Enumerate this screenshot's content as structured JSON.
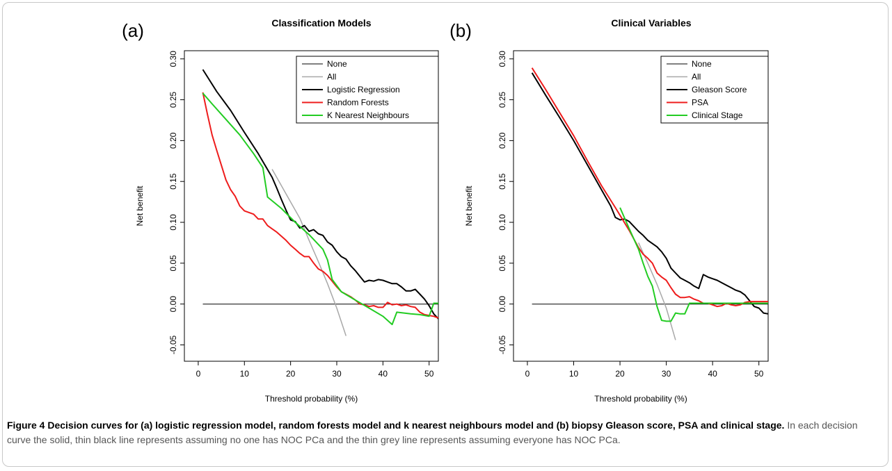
{
  "caption": {
    "bold": "Figure 4 Decision curves for (a) logistic regression model, random forests model and k nearest neighbours model and (b) biopsy Gleason score, PSA and clinical stage.",
    "text": " In each decision curve the solid, thin black line represents assuming no one has NOC PCa and the thin grey line represents assuming everyone has NOC PCa."
  },
  "chart_data": [
    {
      "type": "line",
      "panel_label": "(a)",
      "title": "Classification Models",
      "xlabel": "Threshold probability (%)",
      "ylabel": "Net benefit",
      "xlim": [
        -3,
        52
      ],
      "ylim": [
        -0.07,
        0.31
      ],
      "xticks": [
        "0",
        "10",
        "20",
        "30",
        "40",
        "50"
      ],
      "yticks": [
        "-0.05",
        "0.00",
        "0.05",
        "0.10",
        "0.15",
        "0.20",
        "0.25",
        "0.30"
      ],
      "legend_position": "top-right",
      "series": [
        {
          "name": "None",
          "color": "#000000",
          "width": 1,
          "x": [
            1,
            52
          ],
          "y": [
            0,
            0
          ]
        },
        {
          "name": "All",
          "color": "#a8a8a8",
          "width": 1.5,
          "x": [
            16,
            20,
            22,
            24,
            26,
            28,
            30,
            32
          ],
          "y": [
            0.165,
            0.125,
            0.105,
            0.078,
            0.052,
            0.025,
            -0.005,
            -0.039
          ]
        },
        {
          "name": "Logistic Regression",
          "color": "#000000",
          "width": 2,
          "x": [
            1,
            4,
            7,
            10,
            13,
            16,
            17,
            18,
            19,
            20,
            21,
            22,
            23,
            24,
            25,
            26,
            27,
            28,
            29,
            30,
            31,
            32,
            33,
            34,
            35,
            36,
            37,
            38,
            39,
            40,
            41,
            42,
            43,
            44,
            45,
            46,
            47,
            48,
            49,
            50,
            51,
            52
          ],
          "y": [
            0.287,
            0.26,
            0.237,
            0.21,
            0.184,
            0.155,
            0.142,
            0.128,
            0.115,
            0.103,
            0.101,
            0.093,
            0.096,
            0.089,
            0.091,
            0.086,
            0.084,
            0.076,
            0.072,
            0.064,
            0.058,
            0.055,
            0.047,
            0.041,
            0.034,
            0.027,
            0.029,
            0.028,
            0.03,
            0.029,
            0.027,
            0.025,
            0.025,
            0.021,
            0.016,
            0.016,
            0.018,
            0.012,
            0.006,
            -0.002,
            -0.012,
            -0.018
          ]
        },
        {
          "name": "Random Forests",
          "color": "#ee1c1c",
          "width": 2,
          "x": [
            1,
            2,
            3,
            4,
            5,
            6,
            7,
            8,
            9,
            10,
            11,
            12,
            13,
            14,
            15,
            16,
            17,
            18,
            19,
            20,
            21,
            22,
            23,
            24,
            25,
            26,
            27,
            28,
            29,
            30,
            31,
            32,
            33,
            34,
            35,
            36,
            37,
            38,
            39,
            40,
            41,
            42,
            43,
            44,
            45,
            46,
            47,
            48,
            49,
            50,
            51,
            52
          ],
          "y": [
            0.259,
            0.232,
            0.207,
            0.188,
            0.17,
            0.152,
            0.14,
            0.132,
            0.12,
            0.114,
            0.112,
            0.11,
            0.104,
            0.104,
            0.096,
            0.092,
            0.088,
            0.083,
            0.078,
            0.072,
            0.067,
            0.062,
            0.058,
            0.058,
            0.05,
            0.043,
            0.04,
            0.035,
            0.028,
            0.021,
            0.015,
            0.012,
            0.009,
            0.005,
            0.0,
            -0.001,
            -0.003,
            -0.002,
            -0.004,
            -0.004,
            0.002,
            -0.001,
            0.0,
            -0.002,
            -0.001,
            -0.003,
            -0.004,
            -0.01,
            -0.013,
            -0.014,
            -0.015,
            -0.017
          ]
        },
        {
          "name": "K Nearest Neighbours",
          "color": "#22cc22",
          "width": 2,
          "x": [
            1,
            3,
            6,
            9,
            12,
            14,
            15,
            18,
            21,
            24,
            27,
            28,
            29,
            31,
            34,
            37,
            40,
            42,
            43,
            46,
            48,
            50,
            51,
            52
          ],
          "y": [
            0.258,
            0.245,
            0.226,
            0.207,
            0.184,
            0.167,
            0.131,
            0.117,
            0.1,
            0.085,
            0.067,
            0.054,
            0.03,
            0.015,
            0.005,
            -0.005,
            -0.015,
            -0.025,
            -0.01,
            -0.012,
            -0.013,
            -0.015,
            0.001,
            0.001
          ]
        }
      ]
    },
    {
      "type": "line",
      "panel_label": "(b)",
      "title": "Clinical Variables",
      "xlabel": "Threshold probability (%)",
      "ylabel": "Net benefit",
      "xlim": [
        -3,
        52
      ],
      "ylim": [
        -0.07,
        0.31
      ],
      "xticks": [
        "0",
        "10",
        "20",
        "30",
        "40",
        "50"
      ],
      "yticks": [
        "-0.05",
        "0.00",
        "0.05",
        "0.10",
        "0.15",
        "0.20",
        "0.25",
        "0.30"
      ],
      "legend_position": "top-right",
      "series": [
        {
          "name": "None",
          "color": "#000000",
          "width": 1,
          "x": [
            1,
            52
          ],
          "y": [
            0,
            0
          ]
        },
        {
          "name": "All",
          "color": "#a8a8a8",
          "width": 1.5,
          "x": [
            24,
            26,
            28,
            30,
            32
          ],
          "y": [
            0.075,
            0.05,
            0.024,
            -0.005,
            -0.044
          ]
        },
        {
          "name": "Gleason Score",
          "color": "#000000",
          "width": 2,
          "x": [
            1,
            4,
            7,
            10,
            13,
            16,
            18,
            19,
            20,
            21,
            22,
            23,
            24,
            25,
            26,
            27,
            28,
            29,
            30,
            31,
            32,
            33,
            34,
            35,
            36,
            37,
            38,
            39,
            40,
            41,
            42,
            43,
            44,
            45,
            46,
            47,
            48,
            49,
            50,
            51,
            52
          ],
          "y": [
            0.283,
            0.255,
            0.228,
            0.2,
            0.17,
            0.14,
            0.12,
            0.106,
            0.103,
            0.104,
            0.101,
            0.095,
            0.089,
            0.084,
            0.078,
            0.074,
            0.07,
            0.064,
            0.056,
            0.044,
            0.038,
            0.032,
            0.029,
            0.026,
            0.022,
            0.019,
            0.036,
            0.033,
            0.031,
            0.029,
            0.026,
            0.023,
            0.02,
            0.017,
            0.015,
            0.011,
            0.004,
            -0.003,
            -0.005,
            -0.011,
            -0.012
          ]
        },
        {
          "name": "PSA",
          "color": "#ee1c1c",
          "width": 2,
          "x": [
            1,
            4,
            7,
            10,
            13,
            16,
            19,
            22,
            24,
            25,
            26,
            27,
            28,
            29,
            30,
            31,
            32,
            33,
            34,
            35,
            36,
            37,
            38,
            39,
            40,
            41,
            42,
            43,
            44,
            45,
            46,
            47,
            48,
            52
          ],
          "y": [
            0.289,
            0.262,
            0.234,
            0.206,
            0.175,
            0.145,
            0.118,
            0.09,
            0.069,
            0.061,
            0.056,
            0.05,
            0.038,
            0.033,
            0.029,
            0.02,
            0.012,
            0.008,
            0.008,
            0.009,
            0.006,
            0.004,
            0.001,
            0.001,
            -0.001,
            -0.003,
            -0.002,
            0.001,
            -0.001,
            -0.002,
            -0.001,
            0.002,
            0.003,
            0.003
          ]
        },
        {
          "name": "Clinical Stage",
          "color": "#22cc22",
          "width": 2,
          "x": [
            20,
            22,
            24,
            25,
            26,
            27,
            28,
            29,
            30,
            31,
            32,
            33,
            34,
            35,
            52
          ],
          "y": [
            0.118,
            0.092,
            0.067,
            0.05,
            0.034,
            0.022,
            -0.003,
            -0.02,
            -0.021,
            -0.021,
            -0.011,
            -0.012,
            -0.012,
            0.001,
            0.001
          ]
        }
      ]
    }
  ]
}
